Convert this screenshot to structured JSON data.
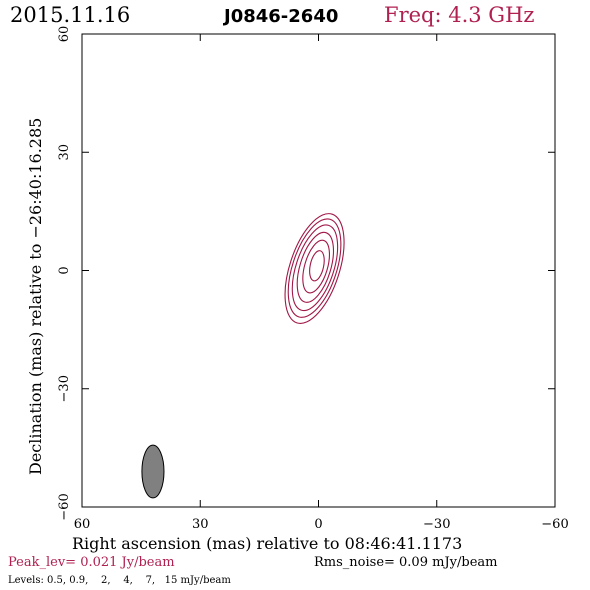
{
  "header": {
    "date": "2015.11.16",
    "source": "J0846-2640",
    "freq": "Freq: 4.3 GHz"
  },
  "footer": {
    "peak": "Peak_lev=  0.021 Jy/beam",
    "rms": "Rms_noise= 0.09 mJy/beam",
    "levels": "Levels: 0.5, 0.9,    2,    4,    7,   15 mJy/beam"
  },
  "colors": {
    "contour": "#a01848",
    "freq_text": "#b02050",
    "beam_fill": "#808080",
    "axes": "#000000"
  },
  "chart_data": {
    "type": "contour",
    "xlabel": "Right ascension (mas) relative to 08:46:41.1173",
    "ylabel": "Declination (mas) relative to −26:40:16.285",
    "xlim": [
      60,
      -60
    ],
    "ylim": [
      -60,
      60
    ],
    "x_ticks": [
      60,
      30,
      0,
      -30,
      -60
    ],
    "y_ticks": [
      -60,
      -30,
      0,
      30,
      60
    ],
    "x_tick_labels": [
      "60",
      "30",
      "0",
      "−30",
      "−60"
    ],
    "y_tick_labels": [
      "−60",
      "−30",
      "0",
      "30",
      "60"
    ],
    "contour_levels_mJy": [
      0.5,
      0.9,
      2,
      4,
      7,
      15
    ],
    "contours": [
      {
        "level": 0.5,
        "cx": 1.0,
        "cy": 0.5,
        "semi_major": 14.5,
        "semi_minor": 6.3,
        "pa_deg": 18
      },
      {
        "level": 0.9,
        "cx": 1.0,
        "cy": 0.6,
        "semi_major": 13.0,
        "semi_minor": 5.6,
        "pa_deg": 18
      },
      {
        "level": 2,
        "cx": 0.9,
        "cy": 0.7,
        "semi_major": 11.3,
        "semi_minor": 4.8,
        "pa_deg": 18
      },
      {
        "level": 4,
        "cx": 0.8,
        "cy": 0.8,
        "semi_major": 9.2,
        "semi_minor": 3.9,
        "pa_deg": 17
      },
      {
        "level": 7,
        "cx": 0.6,
        "cy": 1.0,
        "semi_major": 6.9,
        "semi_minor": 2.9,
        "pa_deg": 16
      },
      {
        "level": 15,
        "cx": 0.4,
        "cy": 1.2,
        "semi_major": 3.9,
        "semi_minor": 1.7,
        "pa_deg": 12
      }
    ],
    "beam": {
      "cx": 42,
      "cy": -51,
      "semi_major": 6.7,
      "semi_minor": 2.8,
      "pa_deg": 0
    }
  }
}
